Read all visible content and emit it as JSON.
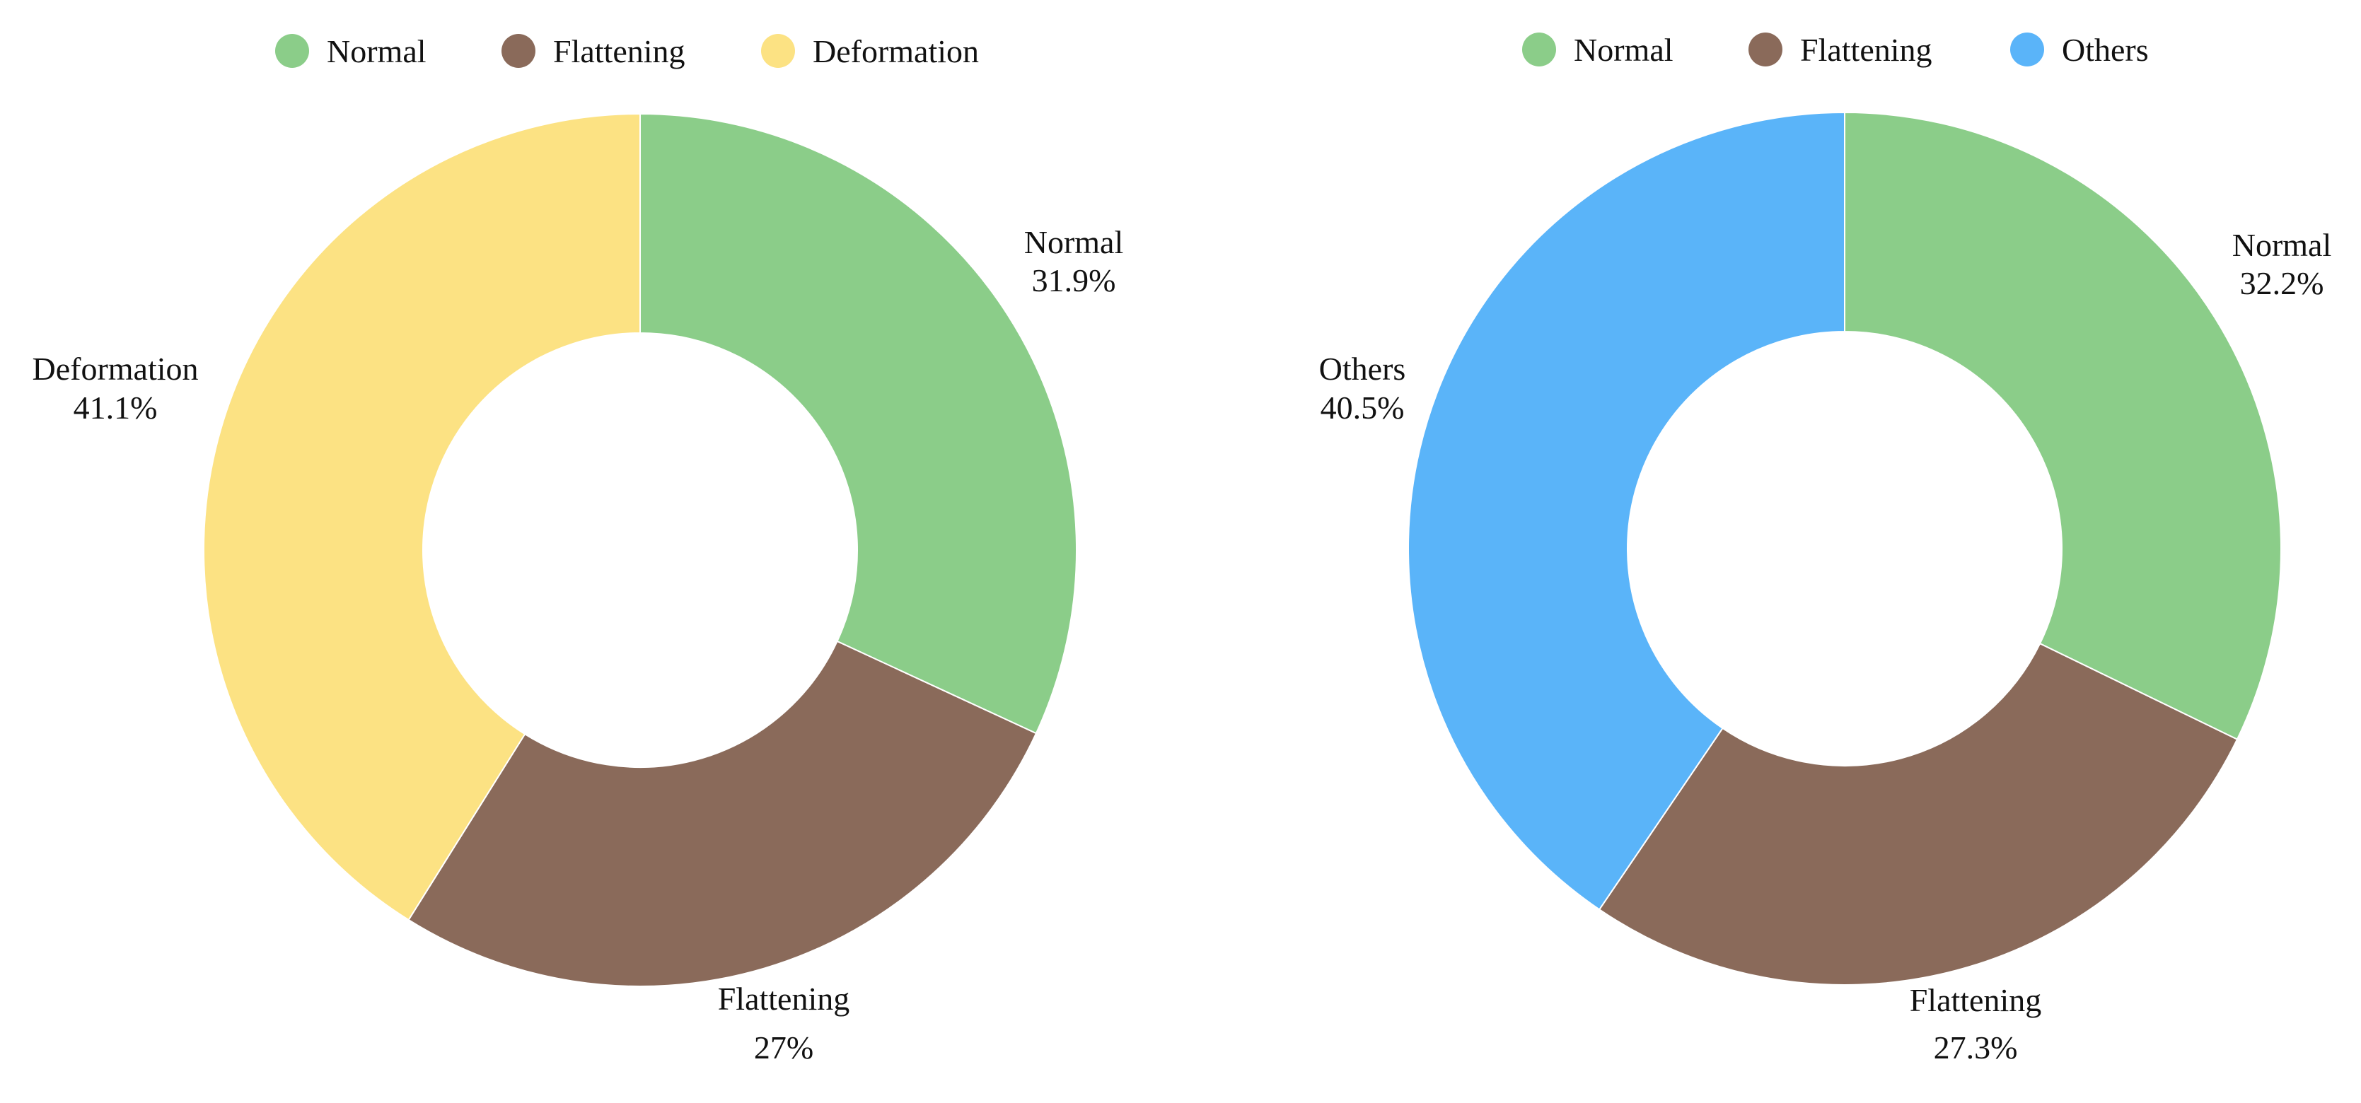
{
  "chart_data": [
    {
      "type": "pie",
      "donut": true,
      "legend_position": "top",
      "categories": [
        "Normal",
        "Flattening",
        "Deformation"
      ],
      "values": [
        31.9,
        27,
        41.1
      ],
      "value_labels": [
        "31.9%",
        "27%",
        "41.1%"
      ],
      "colors": [
        "#8bcd89",
        "#8a6a5a",
        "#fce283"
      ]
    },
    {
      "type": "pie",
      "donut": true,
      "legend_position": "top",
      "categories": [
        "Normal",
        "Flattening",
        "Others"
      ],
      "values": [
        32.2,
        27.3,
        40.5
      ],
      "value_labels": [
        "32.2%",
        "27.3%",
        "40.5%"
      ],
      "colors": [
        "#8bcd89",
        "#8a6a5a",
        "#5ab4f9"
      ]
    }
  ]
}
